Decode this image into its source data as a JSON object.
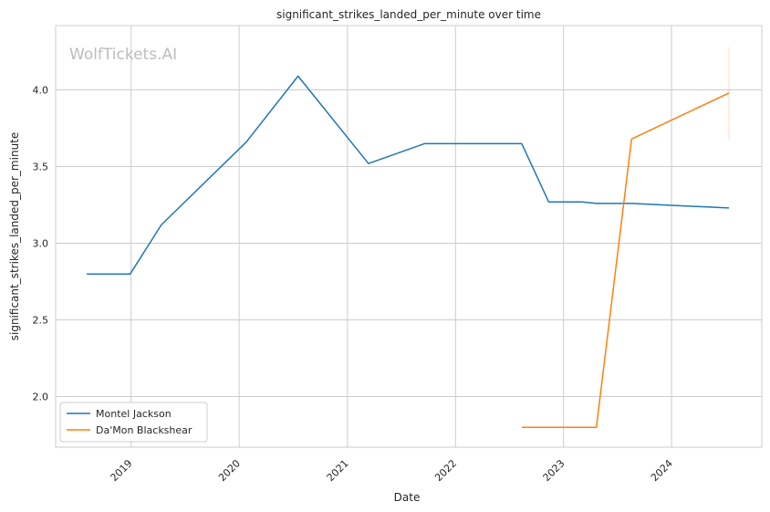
{
  "chart_data": {
    "type": "line",
    "title": "significant_strikes_landed_per_minute over time",
    "xlabel": "Date",
    "ylabel": "significant_strikes_landed_per_minute",
    "watermark": "WolfTickets.AI",
    "grid": true,
    "legend_position": "lower-left",
    "xlim": [
      "2018-04-21",
      "2024-11-01"
    ],
    "ylim": [
      1.67,
      4.42
    ],
    "x_ticks": [
      "2019",
      "2020",
      "2021",
      "2022",
      "2023",
      "2024"
    ],
    "y_ticks": [
      "2.0",
      "2.5",
      "3.0",
      "3.5",
      "4.0"
    ],
    "series": [
      {
        "name": "Montel Jackson",
        "color": "#1f77b4",
        "x": [
          "2018-08-04",
          "2018-12-29",
          "2019-04-13",
          "2020-01-25",
          "2020-07-18",
          "2021-03-13",
          "2021-09-18",
          "2022-08-13",
          "2022-11-12",
          "2023-03-04",
          "2023-04-22",
          "2023-08-19",
          "2024-07-13"
        ],
        "y": [
          2.8,
          2.8,
          3.12,
          3.66,
          4.09,
          3.52,
          3.65,
          3.65,
          3.27,
          3.27,
          3.26,
          3.26,
          3.23
        ]
      },
      {
        "name": "Da'Mon Blackshear",
        "color": "#ff7f0e",
        "x": [
          "2022-08-13",
          "2023-04-22",
          "2023-08-19",
          "2024-07-13"
        ],
        "y": [
          1.8,
          1.8,
          3.68,
          3.98
        ]
      }
    ]
  }
}
